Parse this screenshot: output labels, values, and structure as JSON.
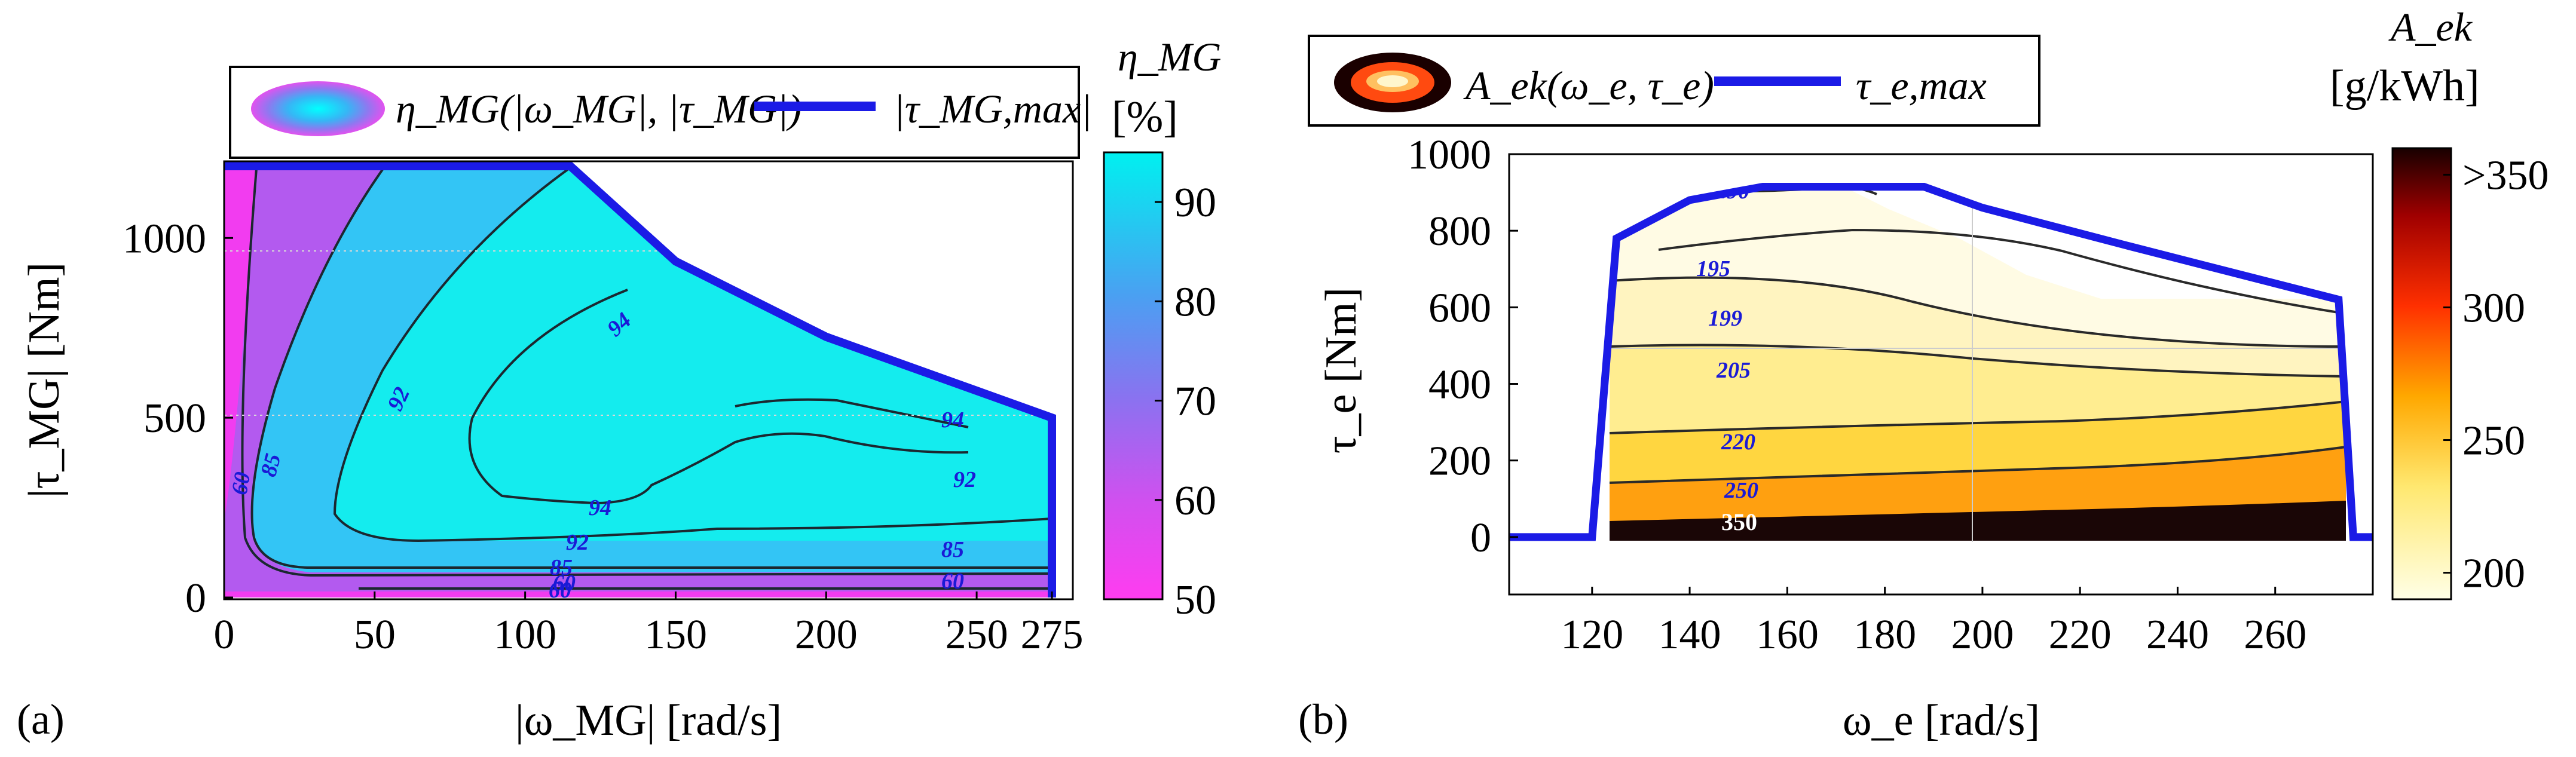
{
  "chart_data": [
    {
      "panel": "(a)",
      "type": "heatmap",
      "title": "",
      "xlabel": "|ω_MG| [rad/s]",
      "ylabel": "|τ_MG| [Nm]",
      "xlim": [
        0,
        275
      ],
      "ylim": [
        0,
        1200
      ],
      "xticks": [
        "0",
        "50",
        "100",
        "150",
        "200",
        "250",
        "275"
      ],
      "yticks": [
        "0",
        "500",
        "1000"
      ],
      "legend": [
        "η_MG(|ω_MG|, |τ_MG|)",
        "|τ_MG,max|"
      ],
      "colorbar": {
        "label": "η_MG",
        "unit": "[%]",
        "ticks": [
          "50",
          "60",
          "70",
          "80",
          "90"
        ],
        "range": [
          50,
          95
        ]
      },
      "contour_labels": [
        "60",
        "85",
        "92",
        "94",
        "94",
        "94",
        "92",
        "92",
        "85",
        "85",
        "60",
        "60",
        "60"
      ],
      "max_torque_curve": {
        "x": [
          0,
          115,
          150,
          200,
          250,
          275,
          275
        ],
        "y": [
          1200,
          1200,
          935,
          725,
          575,
          500,
          0
        ]
      }
    },
    {
      "panel": "(b)",
      "type": "heatmap",
      "title": "",
      "xlabel": "ω_e [rad/s]",
      "ylabel": "τ_e [Nm]",
      "xlim": [
        103,
        280
      ],
      "ylim": [
        -150,
        1000
      ],
      "xticks": [
        "120",
        "140",
        "160",
        "180",
        "200",
        "220",
        "240",
        "260"
      ],
      "yticks": [
        "0",
        "200",
        "400",
        "600",
        "800",
        "1000"
      ],
      "legend": [
        "A_ek(ω_e, τ_e)",
        "τ_e,max"
      ],
      "colorbar": {
        "label": "A_ek",
        "unit": "[g/kWh]",
        "ticks": [
          "200",
          "250",
          "300",
          ">350"
        ],
        "range": [
          190,
          360
        ]
      },
      "contour_labels": [
        "190",
        "195",
        "199",
        "205",
        "220",
        "250",
        "350"
      ],
      "max_torque_curve": {
        "x": [
          103,
          120,
          125,
          140,
          155,
          188,
          200,
          230,
          273,
          276,
          280
        ],
        "y": [
          0,
          0,
          780,
          880,
          915,
          915,
          860,
          760,
          620,
          0,
          0
        ]
      }
    }
  ],
  "panel_tags": {
    "a": "(a)",
    "b": "(b)"
  }
}
